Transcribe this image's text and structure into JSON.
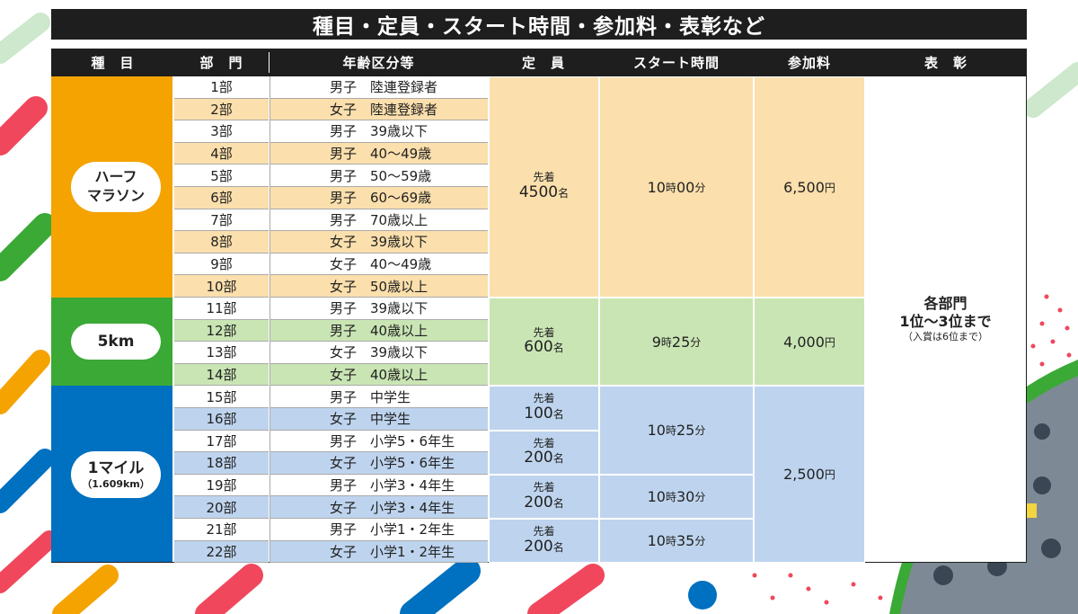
{
  "title": "種目・定員・スタート時間・参加料・表彰など",
  "headers": [
    "種　目",
    "部　門",
    "年齢区分等",
    "定　員",
    "スタート時間",
    "参加料",
    "表　彰"
  ],
  "events": [
    {
      "name_line1": "ハーフ",
      "name_line2": "マラソン",
      "color": "#f5a300",
      "row_light": "#ffffff",
      "row_dark": "#fbdfac",
      "block_color": "#fbdfac"
    },
    {
      "name_line1": "5km",
      "name_line2": "",
      "color": "#3aa935",
      "row_light": "#ffffff",
      "row_dark": "#c9e5b4",
      "block_color": "#c9e5b4"
    },
    {
      "name_line1": "1マイル",
      "name_line2": "（1.609km）",
      "color": "#0070c0",
      "row_light": "#ffffff",
      "row_dark": "#bed4ee",
      "block_color": "#bed4ee"
    }
  ],
  "divisions": [
    {
      "div": "1部",
      "age": "男子　陸連登録者"
    },
    {
      "div": "2部",
      "age": "女子　陸連登録者"
    },
    {
      "div": "3部",
      "age": "男子　39歳以下"
    },
    {
      "div": "4部",
      "age": "男子　40〜49歳"
    },
    {
      "div": "5部",
      "age": "男子　50〜59歳"
    },
    {
      "div": "6部",
      "age": "男子　60〜69歳"
    },
    {
      "div": "7部",
      "age": "男子　70歳以上"
    },
    {
      "div": "8部",
      "age": "女子　39歳以下"
    },
    {
      "div": "9部",
      "age": "女子　40〜49歳"
    },
    {
      "div": "10部",
      "age": "女子　50歳以上"
    },
    {
      "div": "11部",
      "age": "男子　39歳以下"
    },
    {
      "div": "12部",
      "age": "男子　40歳以上"
    },
    {
      "div": "13部",
      "age": "女子　39歳以下"
    },
    {
      "div": "14部",
      "age": "女子　40歳以上"
    },
    {
      "div": "15部",
      "age": "男子　中学生"
    },
    {
      "div": "16部",
      "age": "女子　中学生"
    },
    {
      "div": "17部",
      "age": "男子　小学5・6年生"
    },
    {
      "div": "18部",
      "age": "女子　小学5・6年生"
    },
    {
      "div": "19部",
      "age": "男子　小学3・4年生"
    },
    {
      "div": "20部",
      "age": "女子　小学3・4年生"
    },
    {
      "div": "21部",
      "age": "男子　小学1・2年生"
    },
    {
      "div": "22部",
      "age": "女子　小学1・2年生"
    }
  ],
  "capacity": [
    {
      "label": "先着",
      "value": "4500",
      "unit": "名"
    },
    {
      "label": "先着",
      "value": "600",
      "unit": "名"
    },
    {
      "label": "先着",
      "value": "100",
      "unit": "名"
    },
    {
      "label": "先着",
      "value": "200",
      "unit": "名"
    },
    {
      "label": "先着",
      "value": "200",
      "unit": "名"
    },
    {
      "label": "先着",
      "value": "200",
      "unit": "名"
    }
  ],
  "start_times": [
    {
      "h": "10",
      "hu": "時",
      "m": "00",
      "mu": "分"
    },
    {
      "h": "9",
      "hu": "時",
      "m": "25",
      "mu": "分"
    },
    {
      "h": "10",
      "hu": "時",
      "m": "25",
      "mu": "分"
    },
    {
      "h": "10",
      "hu": "時",
      "m": "30",
      "mu": "分"
    },
    {
      "h": "10",
      "hu": "時",
      "m": "35",
      "mu": "分"
    }
  ],
  "fees": [
    {
      "value": "6,500",
      "unit": "円"
    },
    {
      "value": "4,000",
      "unit": "円"
    },
    {
      "value": "2,500",
      "unit": "円"
    }
  ],
  "award": {
    "line1": "各部門",
    "line2": "1位〜3位まで",
    "line3": "（入賞は6位まで）"
  }
}
